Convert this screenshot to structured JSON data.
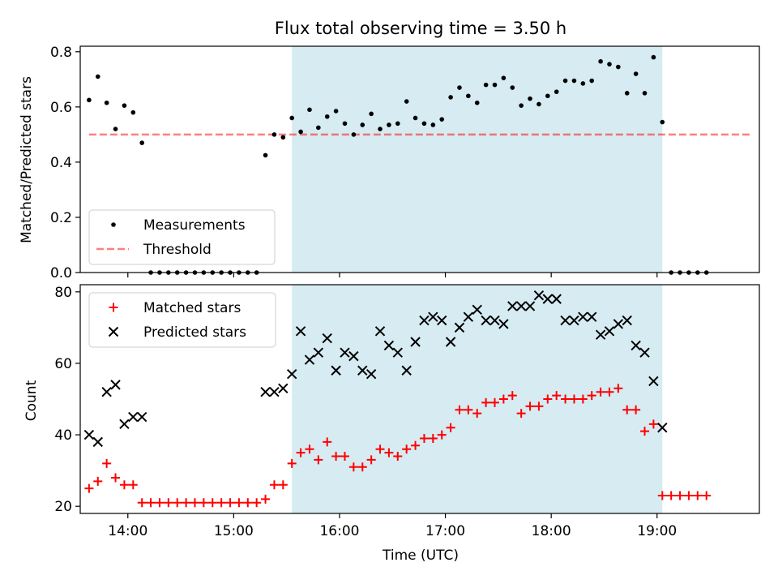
{
  "colors": {
    "shade": "#add8e6",
    "threshold": "#ff0000",
    "matched": "#ff0000",
    "predicted": "#000000",
    "measurement": "#000000"
  },
  "chart_data": [
    {
      "type": "scatter",
      "title": "Flux total observing time = 3.50 h",
      "ylabel": "Matched/Predicted stars",
      "xlim": [
        "13:33",
        "19:58"
      ],
      "ylim": [
        0,
        0.82
      ],
      "yticks": [
        0.0,
        0.2,
        0.4,
        0.6,
        0.8
      ],
      "ytick_labels": [
        "0.0",
        "0.2",
        "0.4",
        "0.6",
        "0.8"
      ],
      "shaded_region": {
        "x_start": "15:33",
        "x_end": "19:03"
      },
      "legend": {
        "position": "lower-left",
        "entries": [
          "Measurements",
          "Threshold"
        ]
      },
      "series": [
        {
          "name": "Measurements",
          "marker": "dot",
          "points": [
            [
              "13:38",
              0.625
            ],
            [
              "13:43",
              0.71
            ],
            [
              "13:48",
              0.615
            ],
            [
              "13:53",
              0.52
            ],
            [
              "13:58",
              0.605
            ],
            [
              "14:03",
              0.58
            ],
            [
              "14:08",
              0.47
            ],
            [
              "14:13",
              0.0
            ],
            [
              "14:18",
              0.0
            ],
            [
              "14:23",
              0.0
            ],
            [
              "14:28",
              0.0
            ],
            [
              "14:33",
              0.0
            ],
            [
              "14:38",
              0.0
            ],
            [
              "14:43",
              0.0
            ],
            [
              "14:48",
              0.0
            ],
            [
              "14:53",
              0.0
            ],
            [
              "14:58",
              0.0
            ],
            [
              "15:03",
              0.0
            ],
            [
              "15:08",
              0.0
            ],
            [
              "15:13",
              0.0
            ],
            [
              "15:18",
              0.425
            ],
            [
              "15:23",
              0.5
            ],
            [
              "15:28",
              0.49
            ],
            [
              "15:33",
              0.56
            ],
            [
              "15:38",
              0.51
            ],
            [
              "15:43",
              0.59
            ],
            [
              "15:48",
              0.525
            ],
            [
              "15:53",
              0.565
            ],
            [
              "15:58",
              0.585
            ],
            [
              "16:03",
              0.54
            ],
            [
              "16:08",
              0.5
            ],
            [
              "16:13",
              0.535
            ],
            [
              "16:18",
              0.575
            ],
            [
              "16:23",
              0.52
            ],
            [
              "16:28",
              0.535
            ],
            [
              "16:33",
              0.54
            ],
            [
              "16:38",
              0.62
            ],
            [
              "16:43",
              0.56
            ],
            [
              "16:48",
              0.54
            ],
            [
              "16:53",
              0.535
            ],
            [
              "16:58",
              0.555
            ],
            [
              "17:03",
              0.635
            ],
            [
              "17:08",
              0.67
            ],
            [
              "17:13",
              0.64
            ],
            [
              "17:18",
              0.615
            ],
            [
              "17:23",
              0.68
            ],
            [
              "17:28",
              0.68
            ],
            [
              "17:33",
              0.705
            ],
            [
              "17:38",
              0.67
            ],
            [
              "17:43",
              0.605
            ],
            [
              "17:48",
              0.63
            ],
            [
              "17:53",
              0.61
            ],
            [
              "17:58",
              0.64
            ],
            [
              "18:03",
              0.655
            ],
            [
              "18:08",
              0.695
            ],
            [
              "18:13",
              0.695
            ],
            [
              "18:18",
              0.685
            ],
            [
              "18:23",
              0.695
            ],
            [
              "18:28",
              0.765
            ],
            [
              "18:33",
              0.755
            ],
            [
              "18:38",
              0.745
            ],
            [
              "18:43",
              0.65
            ],
            [
              "18:48",
              0.72
            ],
            [
              "18:53",
              0.65
            ],
            [
              "18:58",
              0.78
            ],
            [
              "19:03",
              0.545
            ],
            [
              "19:08",
              0.0
            ],
            [
              "19:13",
              0.0
            ],
            [
              "19:18",
              0.0
            ],
            [
              "19:23",
              0.0
            ],
            [
              "19:28",
              0.0
            ]
          ]
        },
        {
          "name": "Threshold",
          "line": "dashed",
          "x": [
            "13:38",
            "19:53"
          ],
          "y": [
            0.5,
            0.5
          ]
        }
      ]
    },
    {
      "type": "scatter",
      "xlabel": "Time (UTC)",
      "ylabel": "Count",
      "xlim": [
        "13:33",
        "19:58"
      ],
      "ylim": [
        18,
        82
      ],
      "yticks": [
        20,
        40,
        60,
        80
      ],
      "ytick_labels": [
        "20",
        "40",
        "60",
        "80"
      ],
      "xticks": [
        "14:00",
        "15:00",
        "16:00",
        "17:00",
        "18:00",
        "19:00"
      ],
      "xtick_labels": [
        "14:00",
        "15:00",
        "16:00",
        "17:00",
        "18:00",
        "19:00"
      ],
      "shaded_region": {
        "x_start": "15:33",
        "x_end": "19:03"
      },
      "legend": {
        "position": "upper-left",
        "entries": [
          "Matched stars",
          "Predicted stars"
        ]
      },
      "series": [
        {
          "name": "Matched stars",
          "marker": "plus",
          "points": [
            [
              "13:38",
              25
            ],
            [
              "13:43",
              27
            ],
            [
              "13:48",
              32
            ],
            [
              "13:53",
              28
            ],
            [
              "13:58",
              26
            ],
            [
              "14:03",
              26
            ],
            [
              "14:08",
              21
            ],
            [
              "14:13",
              21
            ],
            [
              "14:18",
              21
            ],
            [
              "14:23",
              21
            ],
            [
              "14:28",
              21
            ],
            [
              "14:33",
              21
            ],
            [
              "14:38",
              21
            ],
            [
              "14:43",
              21
            ],
            [
              "14:48",
              21
            ],
            [
              "14:53",
              21
            ],
            [
              "14:58",
              21
            ],
            [
              "15:03",
              21
            ],
            [
              "15:08",
              21
            ],
            [
              "15:13",
              21
            ],
            [
              "15:18",
              22
            ],
            [
              "15:23",
              26
            ],
            [
              "15:28",
              26
            ],
            [
              "15:33",
              32
            ],
            [
              "15:38",
              35
            ],
            [
              "15:43",
              36
            ],
            [
              "15:48",
              33
            ],
            [
              "15:53",
              38
            ],
            [
              "15:58",
              34
            ],
            [
              "16:03",
              34
            ],
            [
              "16:08",
              31
            ],
            [
              "16:13",
              31
            ],
            [
              "16:18",
              33
            ],
            [
              "16:23",
              36
            ],
            [
              "16:28",
              35
            ],
            [
              "16:33",
              34
            ],
            [
              "16:38",
              36
            ],
            [
              "16:43",
              37
            ],
            [
              "16:48",
              39
            ],
            [
              "16:53",
              39
            ],
            [
              "16:58",
              40
            ],
            [
              "17:03",
              42
            ],
            [
              "17:08",
              47
            ],
            [
              "17:13",
              47
            ],
            [
              "17:18",
              46
            ],
            [
              "17:23",
              49
            ],
            [
              "17:28",
              49
            ],
            [
              "17:33",
              50
            ],
            [
              "17:38",
              51
            ],
            [
              "17:43",
              46
            ],
            [
              "17:48",
              48
            ],
            [
              "17:53",
              48
            ],
            [
              "17:58",
              50
            ],
            [
              "18:03",
              51
            ],
            [
              "18:08",
              50
            ],
            [
              "18:13",
              50
            ],
            [
              "18:18",
              50
            ],
            [
              "18:23",
              51
            ],
            [
              "18:28",
              52
            ],
            [
              "18:33",
              52
            ],
            [
              "18:38",
              53
            ],
            [
              "18:43",
              47
            ],
            [
              "18:48",
              47
            ],
            [
              "18:53",
              41
            ],
            [
              "18:58",
              43
            ],
            [
              "19:03",
              23
            ],
            [
              "19:08",
              23
            ],
            [
              "19:13",
              23
            ],
            [
              "19:18",
              23
            ],
            [
              "19:23",
              23
            ],
            [
              "19:28",
              23
            ]
          ]
        },
        {
          "name": "Predicted stars",
          "marker": "x",
          "points": [
            [
              "13:38",
              40
            ],
            [
              "13:43",
              38
            ],
            [
              "13:48",
              52
            ],
            [
              "13:53",
              54
            ],
            [
              "13:58",
              43
            ],
            [
              "14:03",
              45
            ],
            [
              "14:08",
              45
            ],
            [
              "15:18",
              52
            ],
            [
              "15:23",
              52
            ],
            [
              "15:28",
              53
            ],
            [
              "15:33",
              57
            ],
            [
              "15:38",
              69
            ],
            [
              "15:43",
              61
            ],
            [
              "15:48",
              63
            ],
            [
              "15:53",
              67
            ],
            [
              "15:58",
              58
            ],
            [
              "16:03",
              63
            ],
            [
              "16:08",
              62
            ],
            [
              "16:13",
              58
            ],
            [
              "16:18",
              57
            ],
            [
              "16:23",
              69
            ],
            [
              "16:28",
              65
            ],
            [
              "16:33",
              63
            ],
            [
              "16:38",
              58
            ],
            [
              "16:43",
              66
            ],
            [
              "16:48",
              72
            ],
            [
              "16:53",
              73
            ],
            [
              "16:58",
              72
            ],
            [
              "17:03",
              66
            ],
            [
              "17:08",
              70
            ],
            [
              "17:13",
              73
            ],
            [
              "17:18",
              75
            ],
            [
              "17:23",
              72
            ],
            [
              "17:28",
              72
            ],
            [
              "17:33",
              71
            ],
            [
              "17:38",
              76
            ],
            [
              "17:43",
              76
            ],
            [
              "17:48",
              76
            ],
            [
              "17:53",
              79
            ],
            [
              "17:58",
              78
            ],
            [
              "18:03",
              78
            ],
            [
              "18:08",
              72
            ],
            [
              "18:13",
              72
            ],
            [
              "18:18",
              73
            ],
            [
              "18:23",
              73
            ],
            [
              "18:28",
              68
            ],
            [
              "18:33",
              69
            ],
            [
              "18:38",
              71
            ],
            [
              "18:43",
              72
            ],
            [
              "18:48",
              65
            ],
            [
              "18:53",
              63
            ],
            [
              "18:58",
              55
            ],
            [
              "19:03",
              42
            ]
          ]
        }
      ]
    }
  ]
}
